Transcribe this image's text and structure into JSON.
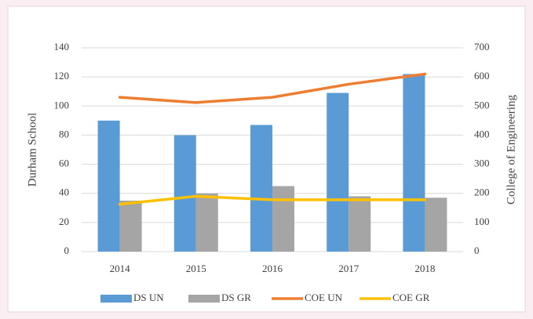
{
  "chart_data": {
    "type": "bar",
    "categories": [
      "2014",
      "2015",
      "2016",
      "2017",
      "2018"
    ],
    "ylabel": "Durham School",
    "y2label": "College of Engineering",
    "series": [
      {
        "name": "DS UN",
        "type": "bar",
        "color": "#5b9bd5",
        "values": [
          90,
          80,
          87,
          109,
          122
        ]
      },
      {
        "name": "DS GR",
        "type": "bar",
        "color": "#a5a5a5",
        "values": [
          35,
          40,
          45,
          38,
          37
        ]
      },
      {
        "name": "COE UN",
        "type": "line",
        "axis": "y2",
        "color": "#ed7d31",
        "values": [
          530,
          512,
          530,
          575,
          610
        ]
      },
      {
        "name": "COE GR",
        "type": "line",
        "axis": "y2",
        "color": "#ffc000",
        "values": [
          163,
          190,
          178,
          178,
          178
        ]
      }
    ],
    "ylim": [
      0,
      140
    ],
    "yticks": [
      0,
      20,
      40,
      60,
      80,
      100,
      120,
      140
    ],
    "y2lim": [
      0,
      700
    ],
    "y2ticks": [
      0,
      100,
      200,
      300,
      400,
      500,
      600,
      700
    ],
    "grid": true,
    "legend": "bottom"
  }
}
